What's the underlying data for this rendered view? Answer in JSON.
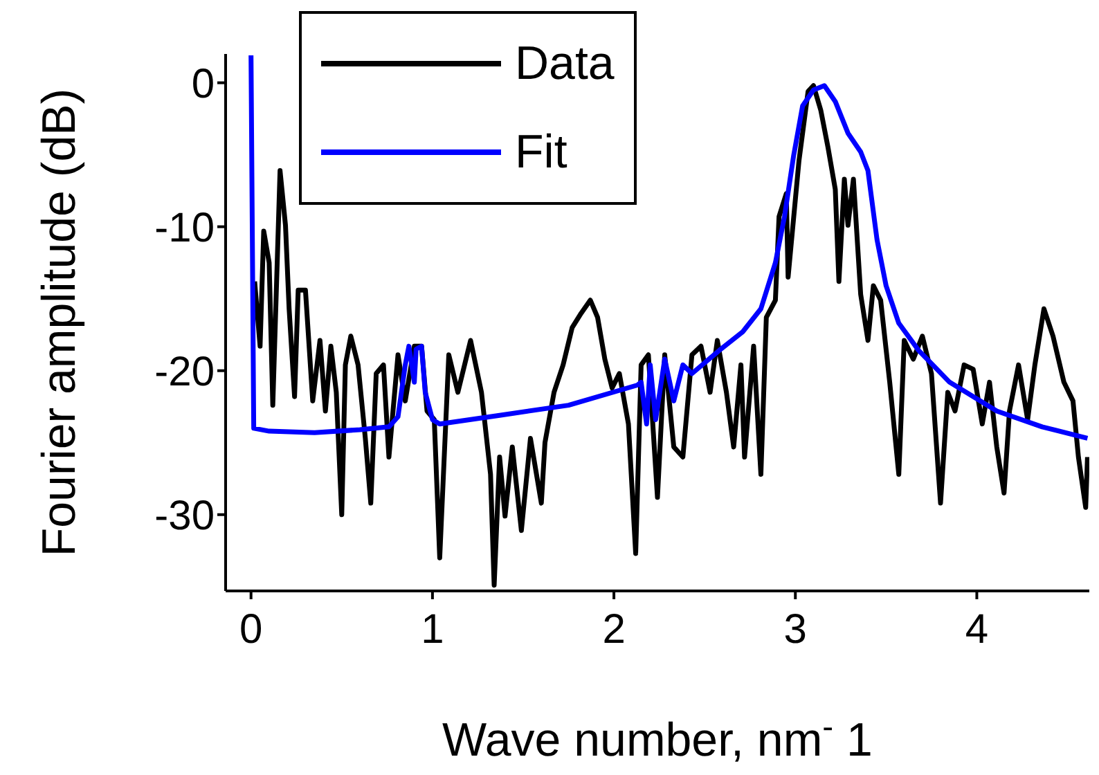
{
  "chart_data": {
    "type": "line",
    "xlabel": "Wave number, nm$^{-}$1",
    "ylabel": "Fourier amplitude (dB)",
    "xlim": [
      -0.14,
      4.62
    ],
    "xticks": [
      0,
      1,
      2,
      3,
      4
    ],
    "ylim": [
      -35.3,
      2
    ],
    "yticks": [
      -30,
      -20,
      -10,
      0
    ],
    "grid": false,
    "legend": "top left",
    "marker": "none",
    "line_style": "solid",
    "series": [
      {
        "name": "Data",
        "color": "#000000",
        "x": [
          0.02,
          0.05,
          0.07,
          0.1,
          0.12,
          0.16,
          0.19,
          0.21,
          0.24,
          0.26,
          0.3,
          0.34,
          0.38,
          0.41,
          0.44,
          0.47,
          0.5,
          0.52,
          0.55,
          0.59,
          0.63,
          0.66,
          0.69,
          0.73,
          0.76,
          0.81,
          0.85,
          0.9,
          0.94,
          0.97,
          1.01,
          1.04,
          1.09,
          1.14,
          1.21,
          1.27,
          1.32,
          1.34,
          1.37,
          1.4,
          1.44,
          1.49,
          1.54,
          1.6,
          1.62,
          1.67,
          1.72,
          1.77,
          1.82,
          1.87,
          1.91,
          1.95,
          1.99,
          2.03,
          2.08,
          2.12,
          2.15,
          2.19,
          2.24,
          2.28,
          2.33,
          2.38,
          2.43,
          2.48,
          2.53,
          2.57,
          2.62,
          2.66,
          2.7,
          2.72,
          2.77,
          2.81,
          2.84,
          2.89,
          2.91,
          2.95,
          2.96,
          3.02,
          3.07,
          3.1,
          3.14,
          3.18,
          3.22,
          3.24,
          3.27,
          3.29,
          3.32,
          3.36,
          3.4,
          3.43,
          3.47,
          3.52,
          3.57,
          3.6,
          3.65,
          3.7,
          3.75,
          3.8,
          3.84,
          3.88,
          3.93,
          3.98,
          4.03,
          4.07,
          4.11,
          4.15,
          4.18,
          4.23,
          4.28,
          4.32,
          4.37,
          4.42,
          4.48,
          4.53,
          4.56,
          4.6,
          4.61
        ],
        "values": [
          -13.8,
          -18.3,
          -10.3,
          -12.5,
          -22.4,
          -6.1,
          -9.9,
          -15.7,
          -21.8,
          -14.4,
          -14.4,
          -22.1,
          -17.9,
          -22.8,
          -18.3,
          -21.5,
          -30.0,
          -19.6,
          -17.6,
          -19.6,
          -24.7,
          -29.2,
          -20.2,
          -19.6,
          -26.0,
          -18.9,
          -22.1,
          -18.3,
          -18.3,
          -22.8,
          -23.4,
          -33.0,
          -18.9,
          -21.5,
          -17.9,
          -21.5,
          -27.2,
          -34.9,
          -26.0,
          -30.1,
          -25.3,
          -31.1,
          -24.7,
          -29.2,
          -25.0,
          -21.5,
          -19.6,
          -17.0,
          -16.0,
          -15.1,
          -16.3,
          -19.2,
          -21.2,
          -20.2,
          -23.7,
          -32.7,
          -19.6,
          -18.9,
          -28.8,
          -18.9,
          -25.3,
          -26.0,
          -18.9,
          -18.3,
          -21.5,
          -17.9,
          -21.5,
          -25.3,
          -19.6,
          -26.0,
          -18.3,
          -27.2,
          -16.3,
          -15.1,
          -9.3,
          -7.7,
          -13.5,
          -5.4,
          -0.6,
          -0.2,
          -1.9,
          -4.5,
          -7.4,
          -13.8,
          -6.7,
          -9.9,
          -6.7,
          -14.7,
          -17.9,
          -14.1,
          -15.1,
          -20.8,
          -27.2,
          -17.9,
          -19.2,
          -17.6,
          -20.2,
          -29.2,
          -21.5,
          -22.8,
          -19.6,
          -19.9,
          -23.7,
          -20.8,
          -25.3,
          -28.5,
          -22.8,
          -19.6,
          -23.4,
          -19.6,
          -15.7,
          -17.6,
          -20.8,
          -22.1,
          -26.0,
          -29.5,
          -26.0
        ]
      },
      {
        "name": "Fit",
        "color": "#0000ff",
        "x": [
          0.0,
          0.015,
          0.1,
          0.35,
          0.6,
          0.76,
          0.81,
          0.85,
          0.87,
          0.9,
          0.91,
          0.94,
          0.96,
          1.0,
          1.04,
          1.37,
          1.75,
          2.13,
          2.15,
          2.18,
          2.2,
          2.23,
          2.28,
          2.33,
          2.38,
          2.43,
          2.58,
          2.71,
          2.81,
          2.89,
          2.94,
          2.99,
          3.04,
          3.1,
          3.16,
          3.22,
          3.29,
          3.36,
          3.4,
          3.45,
          3.5,
          3.57,
          3.68,
          3.85,
          4.11,
          4.36,
          4.61
        ],
        "values": [
          1.9,
          -24.0,
          -24.2,
          -24.3,
          -24.1,
          -23.9,
          -23.2,
          -19.6,
          -18.3,
          -20.8,
          -18.5,
          -18.3,
          -21.5,
          -23.4,
          -23.7,
          -23.1,
          -22.4,
          -21.0,
          -20.8,
          -23.7,
          -19.6,
          -23.4,
          -19.2,
          -22.1,
          -19.6,
          -20.2,
          -18.6,
          -17.3,
          -15.7,
          -12.5,
          -9.3,
          -5.1,
          -1.6,
          -0.5,
          -0.2,
          -1.3,
          -3.5,
          -4.8,
          -6.1,
          -10.9,
          -14.1,
          -16.7,
          -18.6,
          -20.8,
          -22.8,
          -23.9,
          -24.7
        ]
      }
    ]
  }
}
